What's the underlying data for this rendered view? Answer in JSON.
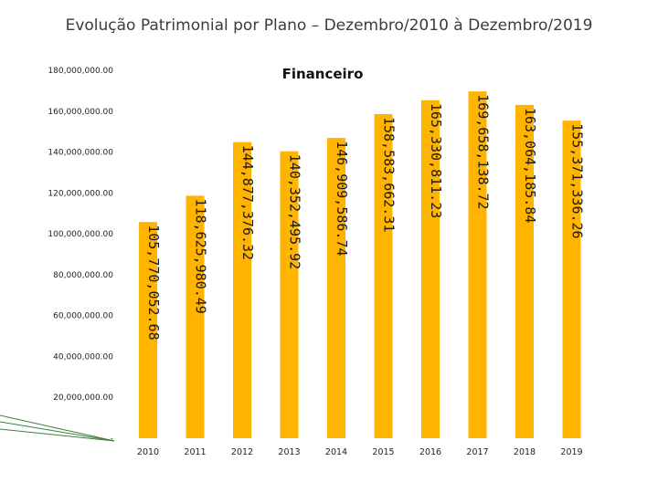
{
  "slide": {
    "title": "Evolução Patrimonial por Plano – Dezembro/2010 à Dezembro/2019"
  },
  "colors": {
    "bar": "#FFB400",
    "decor_line": "#3f7f3f"
  },
  "chart_data": {
    "type": "bar",
    "title": "Financeiro",
    "xlabel": "",
    "ylabel": "",
    "ylim": [
      0,
      180000000
    ],
    "y_ticks": [
      {
        "value": 0,
        "label": "-"
      },
      {
        "value": 20000000,
        "label": "20,000,000.00"
      },
      {
        "value": 40000000,
        "label": "40,000,000.00"
      },
      {
        "value": 60000000,
        "label": "60,000,000.00"
      },
      {
        "value": 80000000,
        "label": "80,000,000.00"
      },
      {
        "value": 100000000,
        "label": "100,000,000.00"
      },
      {
        "value": 120000000,
        "label": "120,000,000.00"
      },
      {
        "value": 140000000,
        "label": "140,000,000.00"
      },
      {
        "value": 160000000,
        "label": "160,000,000.00"
      },
      {
        "value": 180000000,
        "label": "180,000,000.00"
      }
    ],
    "categories": [
      "2010",
      "2011",
      "2012",
      "2013",
      "2014",
      "2015",
      "2016",
      "2017",
      "2018",
      "2019"
    ],
    "values": [
      105770052.68,
      118625980.49,
      144877376.32,
      140352495.92,
      146909586.74,
      158583662.31,
      165330811.23,
      169658138.72,
      163064185.84,
      155371336.26
    ],
    "value_labels": [
      "105,770,052.68",
      "118,625,980.49",
      "144,877,376.32",
      "140,352,495.92",
      "146,909,586.74",
      "158,583,662.31",
      "165,330,811.23",
      "169,658,138.72",
      "163,064,185.84",
      "155,371,336.26"
    ],
    "grid": false,
    "legend": "none"
  }
}
